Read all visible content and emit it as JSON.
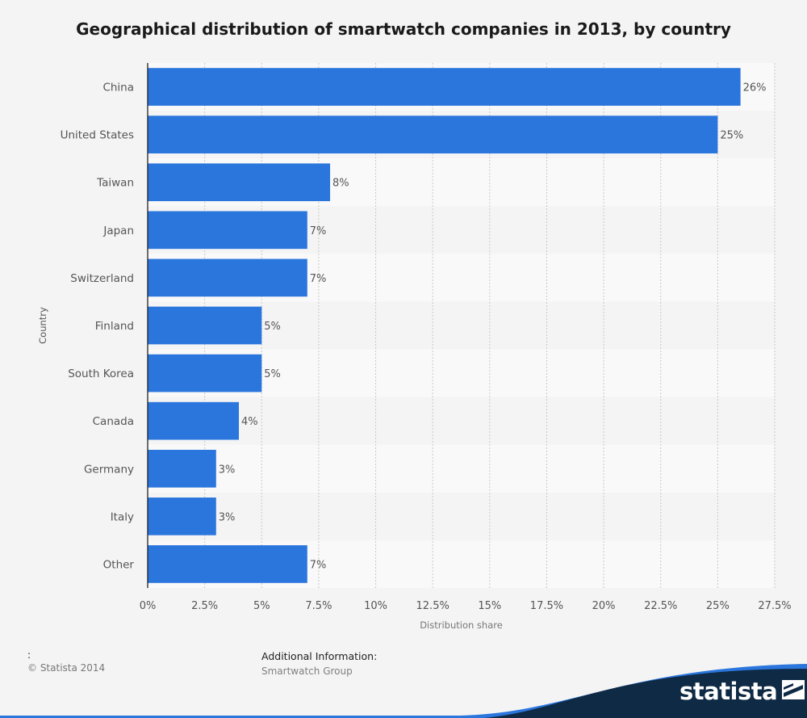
{
  "colors": {
    "bar": "#2a76dd",
    "background": "#f4f4f4",
    "band_light": "#f9f9f9",
    "band_dark": "#f4f4f4",
    "brand_dark": "#0f2a45",
    "brand_accent": "#2a76dd"
  },
  "chart_data": {
    "type": "bar",
    "orientation": "horizontal",
    "title": "Geographical distribution of smartwatch companies in 2013, by country",
    "xlabel": "Distribution share",
    "ylabel": "Country",
    "categories": [
      "China",
      "United States",
      "Taiwan",
      "Japan",
      "Switzerland",
      "Finland",
      "South Korea",
      "Canada",
      "Germany",
      "Italy",
      "Other"
    ],
    "values": [
      26,
      25,
      8,
      7,
      7,
      5,
      5,
      4,
      3,
      3,
      7
    ],
    "value_labels": [
      "26%",
      "25%",
      "8%",
      "7%",
      "7%",
      "5%",
      "5%",
      "4%",
      "3%",
      "3%",
      "7%"
    ],
    "xlim": [
      0,
      27.5
    ],
    "xticks": [
      0,
      2.5,
      5,
      7.5,
      10,
      12.5,
      15,
      17.5,
      20,
      22.5,
      25,
      27.5
    ],
    "xtick_labels": [
      "0%",
      "2.5%",
      "5%",
      "7.5%",
      "10%",
      "12.5%",
      "15%",
      "17.5%",
      "20%",
      "22.5%",
      "25%",
      "27.5%"
    ],
    "grid": true,
    "legend": "none"
  },
  "footer": {
    "colon": ":",
    "source": "© Statista 2014",
    "additional_label": "Additional Information:",
    "additional_value": "Smartwatch Group"
  },
  "brand": {
    "name": "statista",
    "icon": "statista-logo-icon"
  }
}
